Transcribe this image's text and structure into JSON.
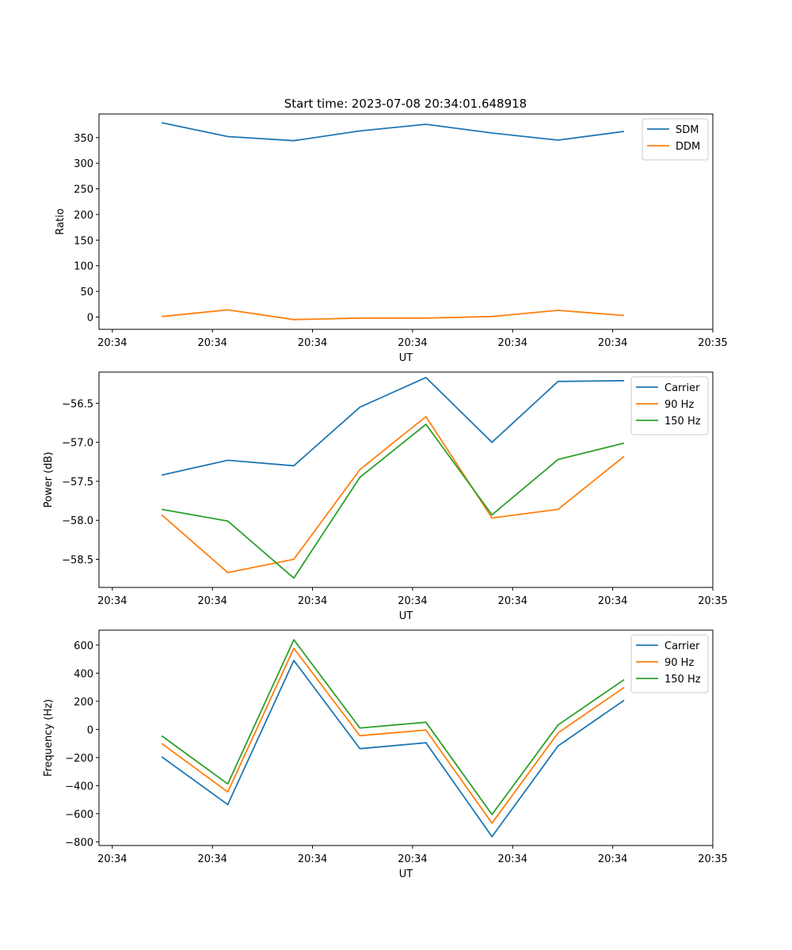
{
  "figure_title": "Start time: 2023-07-08 20:34:01.648918",
  "chart_data": [
    {
      "type": "line",
      "title": "Start time: 2023-07-08 20:34:01.648918",
      "xlabel": "UT",
      "ylabel": "Ratio",
      "x_ticks": [
        "20:34",
        "20:34",
        "20:34",
        "20:34",
        "20:34",
        "20:34",
        "20:35"
      ],
      "x_tick_positions": [
        -0.2,
        1.3,
        2.8,
        4.3,
        5.8,
        7.3,
        8.8
      ],
      "xlim": [
        -0.4,
        8.8
      ],
      "x": [
        0.54,
        1.53,
        2.52,
        3.51,
        4.5,
        5.49,
        6.48,
        7.47
      ],
      "ylim": [
        -24,
        396
      ],
      "y_ticks": [
        0,
        50,
        100,
        150,
        200,
        250,
        300,
        350
      ],
      "y_tick_labels": [
        "0",
        "50",
        "100",
        "150",
        "200",
        "250",
        "300",
        "350"
      ],
      "legend_position": "top-right",
      "series": [
        {
          "name": "SDM",
          "color": "#1f77b4",
          "values": [
            379,
            352,
            344,
            363,
            376,
            359,
            345,
            362
          ]
        },
        {
          "name": "DDM",
          "color": "#ff7f0e",
          "values": [
            1,
            14,
            -5,
            -2,
            -2,
            1,
            13,
            3
          ]
        }
      ]
    },
    {
      "type": "line",
      "title": "",
      "xlabel": "UT",
      "ylabel": "Power (dB)",
      "x_ticks": [
        "20:34",
        "20:34",
        "20:34",
        "20:34",
        "20:34",
        "20:34",
        "20:35"
      ],
      "x_tick_positions": [
        -0.2,
        1.3,
        2.8,
        4.3,
        5.8,
        7.3,
        8.8
      ],
      "xlim": [
        -0.4,
        8.8
      ],
      "x": [
        0.54,
        1.53,
        2.52,
        3.51,
        4.5,
        5.49,
        6.48,
        7.47
      ],
      "ylim": [
        -58.86,
        -56.1
      ],
      "y_ticks": [
        -58.5,
        -58.0,
        -57.5,
        -57.0,
        -56.5
      ],
      "y_tick_labels": [
        "−58.5",
        "−58.0",
        "−57.5",
        "−57.0",
        "−56.5"
      ],
      "legend_position": "top-right",
      "series": [
        {
          "name": "Carrier",
          "color": "#1f77b4",
          "values": [
            -57.42,
            -57.23,
            -57.3,
            -56.55,
            -56.17,
            -57.0,
            -56.22,
            -56.21
          ]
        },
        {
          "name": "90 Hz",
          "color": "#ff7f0e",
          "values": [
            -57.93,
            -58.67,
            -58.5,
            -57.35,
            -56.67,
            -57.97,
            -57.86,
            -57.18
          ]
        },
        {
          "name": "150 Hz",
          "color": "#2ca02c",
          "values": [
            -57.86,
            -58.01,
            -58.74,
            -57.45,
            -56.77,
            -57.93,
            -57.22,
            -57.01
          ]
        }
      ]
    },
    {
      "type": "line",
      "title": "",
      "xlabel": "UT",
      "ylabel": "Frequency (Hz)",
      "x_ticks": [
        "20:34",
        "20:34",
        "20:34",
        "20:34",
        "20:34",
        "20:34",
        "20:35"
      ],
      "x_tick_positions": [
        -0.2,
        1.3,
        2.8,
        4.3,
        5.8,
        7.3,
        8.8
      ],
      "xlim": [
        -0.4,
        8.8
      ],
      "x": [
        0.54,
        1.53,
        2.52,
        3.51,
        4.5,
        5.49,
        6.48,
        7.47
      ],
      "ylim": [
        -826,
        706
      ],
      "y_ticks": [
        -800,
        -600,
        -400,
        -200,
        0,
        200,
        400,
        600
      ],
      "y_tick_labels": [
        "−800",
        "−600",
        "−400",
        "−200",
        "0",
        "200",
        "400",
        "600"
      ],
      "legend_position": "top-right",
      "series": [
        {
          "name": "Carrier",
          "color": "#1f77b4",
          "values": [
            -195,
            -535,
            490,
            -137,
            -95,
            -763,
            -118,
            207
          ]
        },
        {
          "name": "90 Hz",
          "color": "#ff7f0e",
          "values": [
            -100,
            -445,
            577,
            -45,
            -4,
            -667,
            -25,
            298
          ]
        },
        {
          "name": "150 Hz",
          "color": "#2ca02c",
          "values": [
            -46,
            -388,
            638,
            10,
            51,
            -605,
            32,
            354
          ]
        }
      ]
    }
  ]
}
